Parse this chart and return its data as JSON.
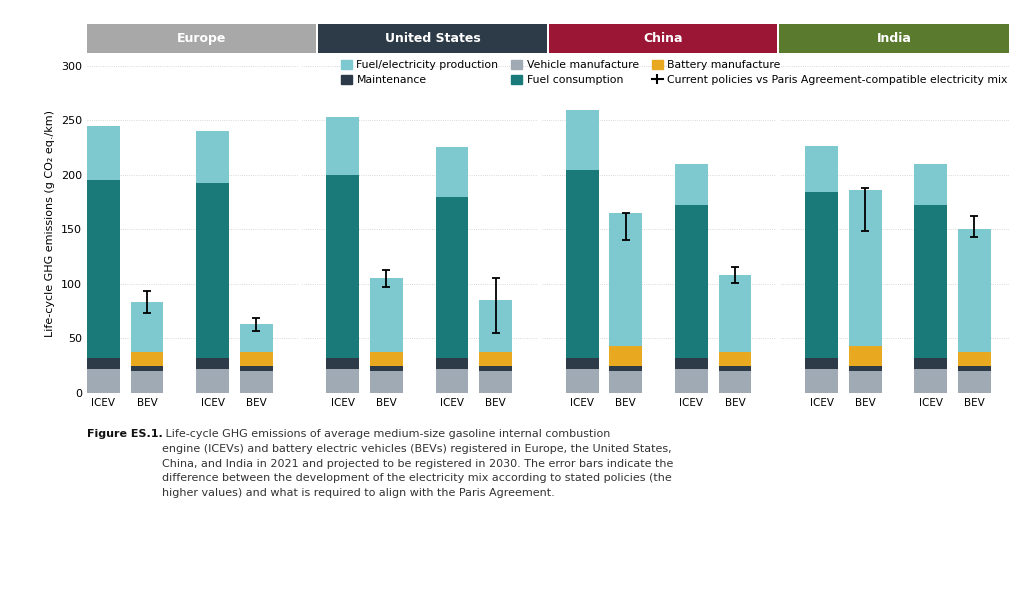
{
  "regions": [
    "Europe",
    "United States",
    "China",
    "India"
  ],
  "region_colors": [
    "#a8a8a8",
    "#2d3a47",
    "#9b1535",
    "#5a7a2e"
  ],
  "bars": {
    "Europe_2021_ICEV": {
      "vehicle_manufacture": 22,
      "maintenance": 10,
      "battery_manufacture": 0,
      "fuel_consumption": 163,
      "fuel_electricity": 50,
      "error_bar": null
    },
    "Europe_2021_BEV": {
      "vehicle_manufacture": 20,
      "maintenance": 5,
      "battery_manufacture": 13,
      "fuel_consumption": 0,
      "fuel_electricity": 45,
      "error_bar": [
        73,
        93
      ]
    },
    "Europe_2030_ICEV": {
      "vehicle_manufacture": 22,
      "maintenance": 10,
      "battery_manufacture": 0,
      "fuel_consumption": 160,
      "fuel_electricity": 48,
      "error_bar": null
    },
    "Europe_2030_BEV": {
      "vehicle_manufacture": 20,
      "maintenance": 5,
      "battery_manufacture": 13,
      "fuel_consumption": 0,
      "fuel_electricity": 25,
      "error_bar": [
        57,
        69
      ]
    },
    "UnitedStates_2021_ICEV": {
      "vehicle_manufacture": 22,
      "maintenance": 10,
      "battery_manufacture": 0,
      "fuel_consumption": 168,
      "fuel_electricity": 53,
      "error_bar": null
    },
    "UnitedStates_2021_BEV": {
      "vehicle_manufacture": 20,
      "maintenance": 5,
      "battery_manufacture": 13,
      "fuel_consumption": 0,
      "fuel_electricity": 67,
      "error_bar": [
        97,
        113
      ]
    },
    "UnitedStates_2030_ICEV": {
      "vehicle_manufacture": 22,
      "maintenance": 10,
      "battery_manufacture": 0,
      "fuel_consumption": 148,
      "fuel_electricity": 45,
      "error_bar": null
    },
    "UnitedStates_2030_BEV": {
      "vehicle_manufacture": 20,
      "maintenance": 5,
      "battery_manufacture": 13,
      "fuel_consumption": 0,
      "fuel_electricity": 47,
      "error_bar": [
        55,
        105
      ]
    },
    "China_2021_ICEV": {
      "vehicle_manufacture": 22,
      "maintenance": 10,
      "battery_manufacture": 0,
      "fuel_consumption": 172,
      "fuel_electricity": 55,
      "error_bar": null
    },
    "China_2021_BEV": {
      "vehicle_manufacture": 20,
      "maintenance": 5,
      "battery_manufacture": 18,
      "fuel_consumption": 0,
      "fuel_electricity": 122,
      "error_bar": [
        140,
        165
      ]
    },
    "China_2030_ICEV": {
      "vehicle_manufacture": 22,
      "maintenance": 10,
      "battery_manufacture": 0,
      "fuel_consumption": 140,
      "fuel_electricity": 38,
      "error_bar": null
    },
    "China_2030_BEV": {
      "vehicle_manufacture": 20,
      "maintenance": 5,
      "battery_manufacture": 13,
      "fuel_consumption": 0,
      "fuel_electricity": 70,
      "error_bar": [
        101,
        115
      ]
    },
    "India_2021_ICEV": {
      "vehicle_manufacture": 22,
      "maintenance": 10,
      "battery_manufacture": 0,
      "fuel_consumption": 152,
      "fuel_electricity": 42,
      "error_bar": null
    },
    "India_2021_BEV": {
      "vehicle_manufacture": 20,
      "maintenance": 5,
      "battery_manufacture": 18,
      "fuel_consumption": 0,
      "fuel_electricity": 143,
      "error_bar": [
        148,
        188
      ]
    },
    "India_2030_ICEV": {
      "vehicle_manufacture": 22,
      "maintenance": 10,
      "battery_manufacture": 0,
      "fuel_consumption": 140,
      "fuel_electricity": 38,
      "error_bar": null
    },
    "India_2030_BEV": {
      "vehicle_manufacture": 20,
      "maintenance": 5,
      "battery_manufacture": 13,
      "fuel_consumption": 0,
      "fuel_electricity": 112,
      "error_bar": [
        143,
        162
      ]
    }
  },
  "bar_order": [
    "Europe_2021_ICEV",
    "Europe_2021_BEV",
    "Europe_2030_ICEV",
    "Europe_2030_BEV",
    "UnitedStates_2021_ICEV",
    "UnitedStates_2021_BEV",
    "UnitedStates_2030_ICEV",
    "UnitedStates_2030_BEV",
    "China_2021_ICEV",
    "China_2021_BEV",
    "China_2030_ICEV",
    "China_2030_BEV",
    "India_2021_ICEV",
    "India_2021_BEV",
    "India_2030_ICEV",
    "India_2030_BEV"
  ],
  "colors": {
    "fuel_electricity": "#7ec8d0",
    "fuel_consumption": "#1a7a7a",
    "maintenance": "#2d3a47",
    "battery_manufacture": "#e8a820",
    "vehicle_manufacture": "#9faab5"
  },
  "ylim": [
    0,
    310
  ],
  "yticks": [
    0,
    50,
    100,
    150,
    200,
    250,
    300
  ],
  "ylabel": "Life-cycle GHG emissions (g CO₂ eq./km)",
  "grid_color": "#cccccc",
  "caption_bold": "Figure ES.1.",
  "caption_rest": " Life-cycle GHG emissions of average medium-size gasoline internal combustion\nengine (ICEVs) and battery electric vehicles (BEVs) registered in Europe, the United States,\nChina, and India in 2021 and projected to be registered in 2030. The error bars indicate the\ndifference between the development of the electricity mix according to stated policies (the\nhigher values) and what is required to align with the Paris Agreement."
}
